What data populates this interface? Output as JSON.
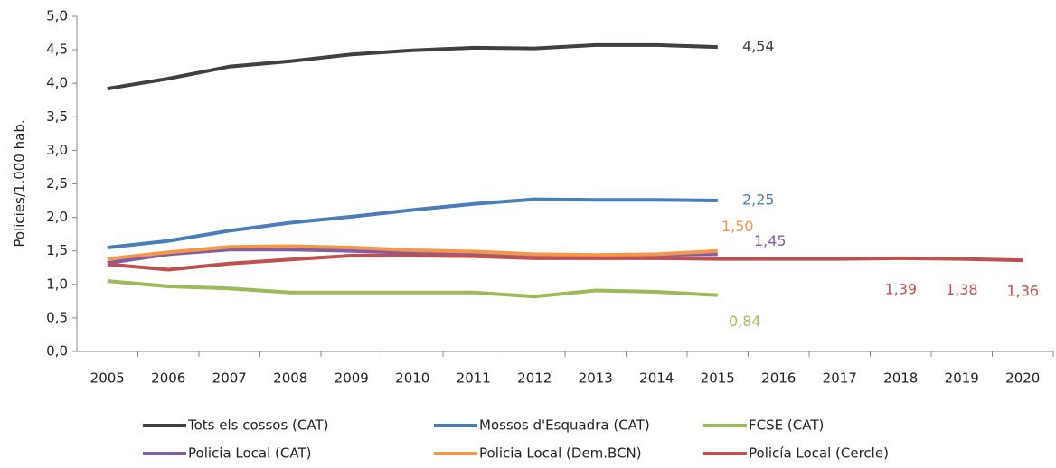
{
  "chart_data": {
    "type": "line",
    "y_label": "Policies/1.000 hab.",
    "categories": [
      "2005",
      "2006",
      "2007",
      "2008",
      "2009",
      "2010",
      "2011",
      "2012",
      "2013",
      "2014",
      "2015",
      "2016",
      "2017",
      "2018",
      "2019",
      "2020"
    ],
    "ylim": [
      0,
      5
    ],
    "yticks": [
      {
        "value": 0,
        "label": "0,0"
      },
      {
        "value": 0.5,
        "label": "0,5"
      },
      {
        "value": 1,
        "label": "1,0"
      },
      {
        "value": 1.5,
        "label": "1,5"
      },
      {
        "value": 2,
        "label": "2,0"
      },
      {
        "value": 2.5,
        "label": "2,5"
      },
      {
        "value": 3,
        "label": "3,0"
      },
      {
        "value": 3.5,
        "label": "3,5"
      },
      {
        "value": 4,
        "label": "4,0"
      },
      {
        "value": 4.5,
        "label": "4,5"
      },
      {
        "value": 5,
        "label": "5,0"
      }
    ],
    "grid": false,
    "legend": "bottom",
    "series": [
      {
        "name": "Tots els cossos (CAT)",
        "color": "#404040",
        "values": [
          3.92,
          4.07,
          4.25,
          4.33,
          4.43,
          4.49,
          4.53,
          4.52,
          4.57,
          4.57,
          4.54,
          null,
          null,
          null,
          null,
          null
        ],
        "value_labels": [
          null,
          null,
          null,
          null,
          null,
          null,
          null,
          null,
          null,
          null,
          "4,54",
          null,
          null,
          null,
          null,
          null
        ]
      },
      {
        "name": "Mossos d'Esquadra (CAT)",
        "color": "#4a7ebb",
        "values": [
          1.55,
          1.65,
          1.8,
          1.92,
          2.01,
          2.11,
          2.2,
          2.27,
          2.26,
          2.26,
          2.25,
          null,
          null,
          null,
          null,
          null
        ],
        "value_labels": [
          null,
          null,
          null,
          null,
          null,
          null,
          null,
          null,
          null,
          null,
          "2,25",
          null,
          null,
          null,
          null,
          null
        ]
      },
      {
        "name": "FCSE (CAT)",
        "color": "#9bbb59",
        "values": [
          1.05,
          0.97,
          0.94,
          0.88,
          0.88,
          0.88,
          0.88,
          0.82,
          0.91,
          0.89,
          0.84,
          null,
          null,
          null,
          null,
          null
        ],
        "value_labels": [
          null,
          null,
          null,
          null,
          null,
          null,
          null,
          null,
          null,
          null,
          "0,84",
          null,
          null,
          null,
          null,
          null
        ]
      },
      {
        "name": "Policia Local (CAT)",
        "color": "#7f60a8",
        "values": [
          1.32,
          1.45,
          1.52,
          1.52,
          1.5,
          1.47,
          1.46,
          1.43,
          1.43,
          1.44,
          1.45,
          null,
          null,
          null,
          null,
          null
        ],
        "value_labels": [
          null,
          null,
          null,
          null,
          null,
          null,
          null,
          null,
          null,
          null,
          "1,45",
          null,
          null,
          null,
          null,
          null
        ]
      },
      {
        "name": "Policia Local (Dem.BCN)",
        "color": "#f79646",
        "values": [
          1.38,
          1.48,
          1.56,
          1.57,
          1.55,
          1.51,
          1.49,
          1.45,
          1.44,
          1.45,
          1.5,
          null,
          null,
          null,
          null,
          null
        ],
        "value_labels": [
          null,
          null,
          null,
          null,
          null,
          null,
          null,
          null,
          null,
          null,
          "1,50",
          null,
          null,
          null,
          null,
          null
        ]
      },
      {
        "name": "Policía Local (Cercle)",
        "color": "#c0504d",
        "values": [
          1.3,
          1.22,
          1.31,
          1.37,
          1.43,
          1.43,
          1.42,
          1.39,
          1.39,
          1.39,
          1.38,
          1.38,
          1.38,
          1.39,
          1.38,
          1.36
        ],
        "value_labels": [
          null,
          null,
          null,
          null,
          null,
          null,
          null,
          null,
          null,
          null,
          null,
          null,
          null,
          "1,39",
          "1,38",
          "1,36"
        ]
      }
    ]
  }
}
